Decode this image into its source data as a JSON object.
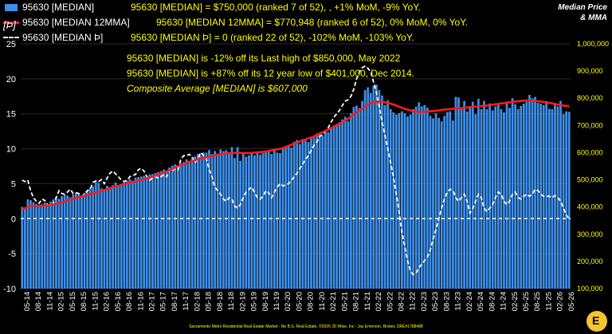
{
  "chart_data": {
    "type": "bar",
    "ylabel_left": "[Þ]",
    "corner_title": [
      "Median Price",
      "& MMA"
    ],
    "left_axis": {
      "ylim": [
        -10,
        25
      ],
      "ticks": [
        -10,
        -5,
        0,
        5,
        10,
        15,
        20,
        25
      ]
    },
    "right_axis": {
      "ylim": [
        100000,
        1000000
      ],
      "ticks": [
        "100,000",
        "200,000",
        "300,000",
        "400,000",
        "500,000",
        "600,000",
        "700,000",
        "800,000",
        "900,000",
        "1,000,000"
      ]
    },
    "x_tick_labels": [
      "05-14",
      "08-14",
      "11-14",
      "02-15",
      "05-15",
      "08-15",
      "11-15",
      "02-16",
      "05-16",
      "08-16",
      "11-16",
      "02-17",
      "05-17",
      "08-17",
      "11-17",
      "02-18",
      "05-18",
      "08-18",
      "11-18",
      "02-19",
      "05-19",
      "08-19",
      "11-19",
      "02-20",
      "05-20",
      "08-20",
      "11-20",
      "02-21",
      "05-21",
      "08-21",
      "11-21",
      "02-22",
      "05-22",
      "08-22",
      "11-22",
      "02-23",
      "05-23",
      "08-23",
      "11-23",
      "02-24",
      "05-24",
      "08-24",
      "11-24",
      "02-25",
      "05-25",
      "08-25",
      "11-25",
      "02-26",
      "05-26"
    ],
    "series": [
      {
        "name": "95630 [MEDIAN]",
        "kind": "bar",
        "axis": "right",
        "color": "#3d8fe8",
        "description": "95630 [MEDIAN] = $750,000 (ranked 7 of 52), , +1% MoM, -9% YoY.",
        "values": [
          400000,
          392000,
          428000,
          425000,
          418000,
          412000,
          405000,
          410000,
          416000,
          402000,
          420000,
          428000,
          436000,
          430000,
          440000,
          445000,
          442000,
          436000,
          446000,
          452000,
          448000,
          442000,
          452000,
          462000,
          470000,
          476000,
          494000,
          488000,
          468000,
          464000,
          478000,
          472000,
          480000,
          490000,
          476000,
          482000,
          491000,
          497000,
          503000,
          497000,
          508000,
          510000,
          512000,
          515000,
          510000,
          520000,
          521000,
          525000,
          528000,
          532000,
          538000,
          531000,
          545000,
          552000,
          557000,
          548000,
          560000,
          565000,
          575000,
          570000,
          579000,
          586000,
          595000,
          589000,
          600000,
          600000,
          610000,
          595000,
          606000,
          596000,
          612000,
          605000,
          609000,
          595000,
          620000,
          580000,
          620000,
          570000,
          600000,
          585000,
          590000,
          596000,
          590000,
          600000,
          592000,
          598000,
          600000,
          605000,
          595000,
          610000,
          600000,
          598000,
          615000,
          622000,
          627000,
          618000,
          640000,
          646000,
          632000,
          650000,
          644000,
          639000,
          652000,
          656000,
          670000,
          665000,
          662000,
          680000,
          675000,
          690000,
          700000,
          706000,
          712000,
          722000,
          732000,
          716000,
          745000,
          768000,
          773000,
          764000,
          790000,
          830000,
          840000,
          820000,
          845000,
          850000,
          830000,
          810000,
          775000,
          792000,
          760000,
          748000,
          740000,
          745000,
          752000,
          745000,
          733000,
          740000,
          760000,
          769000,
          785000,
          770000,
          775000,
          765000,
          735000,
          726000,
          745000,
          728000,
          715000,
          735000,
          749000,
          752000,
          718000,
          805000,
          803000,
          760000,
          790000,
          751000,
          768000,
          787000,
          742000,
          798000,
          760000,
          790000,
          760000,
          781000,
          755000,
          770000,
          780000,
          760000,
          748000,
          786000,
          765000,
          800000,
          778000,
          760000,
          772000,
          780000,
          787000,
          812000,
          800000,
          805000,
          783000,
          780000,
          775000,
          790000,
          761000,
          760000,
          778000,
          770000,
          790000,
          742000,
          752000,
          750000
        ]
      },
      {
        "name": "95630 [MEDIAN 12MMA]",
        "kind": "line",
        "axis": "right",
        "color": "#ff1a1a",
        "description": "95630 [MEDIAN 12MMA] = $770,948 (ranked 6 of 52),  0% MoM, 0% YoY.",
        "values": [
          390000,
          395000,
          400000,
          405000,
          405000,
          405000,
          405000,
          405000,
          406000,
          406000,
          408000,
          410000,
          412000,
          414000,
          417000,
          420000,
          424000,
          428000,
          430000,
          433000,
          436000,
          439000,
          441000,
          444000,
          447000,
          450000,
          453000,
          456000,
          460000,
          462000,
          466000,
          470000,
          473000,
          476000,
          478000,
          481000,
          484000,
          487000,
          490000,
          492000,
          494000,
          497000,
          500000,
          502000,
          505000,
          508000,
          512000,
          515000,
          519000,
          523000,
          527000,
          531000,
          535000,
          540000,
          545000,
          550000,
          554000,
          558000,
          562000,
          566000,
          569000,
          572000,
          575000,
          578000,
          580000,
          583000,
          585000,
          588000,
          590000,
          592000,
          594000,
          596000,
          597000,
          598000,
          598000,
          599000,
          600000,
          599000,
          598000,
          598000,
          598000,
          599000,
          600000,
          601000,
          602000,
          603000,
          604000,
          606000,
          608000,
          610000,
          612000,
          614000,
          617000,
          621000,
          625000,
          629000,
          633000,
          637000,
          641000,
          645000,
          648000,
          652000,
          656000,
          660000,
          665000,
          670000,
          675000,
          680000,
          685000,
          690000,
          695000,
          700000,
          706000,
          712000,
          718000,
          725000,
          732000,
          740000,
          748000,
          755000,
          762000,
          769000,
          776000,
          781000,
          786000,
          788000,
          788000,
          787000,
          785000,
          783000,
          780000,
          777000,
          773000,
          769000,
          765000,
          761000,
          758000,
          755000,
          752000,
          751000,
          750000,
          750000,
          750000,
          751000,
          752000,
          753000,
          754000,
          755000,
          757000,
          758000,
          759000,
          760000,
          761000,
          762000,
          763000,
          764000,
          765000,
          766000,
          767000,
          768000,
          769000,
          770000,
          771000,
          772000,
          773000,
          774000,
          776000,
          778000,
          779000,
          781000,
          782000,
          784000,
          785000,
          787000,
          788000,
          789000,
          790000,
          791000,
          792000,
          792000,
          791000,
          790000,
          789000,
          788000,
          786000,
          785000,
          783000,
          781000,
          779000,
          777000,
          775000,
          773000,
          772000,
          771000
        ]
      },
      {
        "name": "95630 [MEDIAN Þ]",
        "kind": "dashed-line",
        "axis": "left",
        "color": "#ffffff",
        "description": "95630 [MEDIAN Þ] = 0 (ranked 22 of 52), -102% MoM, -103% YoY.",
        "values": [
          5.5,
          5.3,
          5.5,
          4.0,
          3.0,
          2.5,
          2.2,
          2.8,
          2.6,
          2.0,
          1.8,
          2.2,
          3.0,
          4.0,
          3.6,
          3.5,
          3.8,
          4.2,
          3.6,
          3.7,
          3.6,
          3.2,
          3.5,
          4.0,
          4.2,
          5.2,
          5.4,
          5.3,
          5.6,
          5.0,
          5.8,
          6.5,
          6.8,
          6.4,
          6.0,
          5.5,
          5.3,
          5.5,
          6.0,
          6.2,
          6.3,
          7.0,
          7.2,
          6.8,
          6.0,
          5.5,
          5.8,
          6.0,
          5.8,
          6.0,
          6.3,
          6.0,
          7.0,
          6.8,
          7.2,
          7.0,
          8.5,
          9.0,
          9.0,
          9.2,
          8.8,
          8.0,
          8.5,
          9.5,
          9.0,
          8.6,
          7.0,
          6.0,
          4.5,
          4.0,
          3.5,
          2.8,
          2.5,
          3.0,
          2.8,
          1.8,
          1.5,
          2.0,
          3.0,
          3.8,
          4.2,
          4.5,
          3.8,
          3.0,
          2.8,
          3.2,
          4.0,
          3.7,
          3.0,
          3.8,
          4.5,
          5.0,
          4.7,
          4.8,
          5.0,
          5.5,
          6.0,
          6.5,
          7.2,
          7.8,
          8.5,
          9.0,
          9.8,
          10.5,
          11.0,
          11.8,
          12.0,
          12.5,
          13.0,
          13.8,
          14.5,
          15.0,
          15.5,
          16.2,
          16.8,
          17.0,
          17.5,
          18.5,
          20.0,
          21.0,
          21.6,
          21.8,
          21.5,
          21.0,
          19.5,
          18.0,
          16.0,
          13.8,
          12.0,
          10.0,
          8.0,
          6.0,
          3.5,
          1.0,
          -2.0,
          -4.0,
          -6.0,
          -7.5,
          -8.0,
          -7.8,
          -7.0,
          -6.5,
          -6.0,
          -5.5,
          -4.5,
          -3.0,
          -1.5,
          0.0,
          1.5,
          2.8,
          3.8,
          4.2,
          4.0,
          3.0,
          2.5,
          3.0,
          3.5,
          2.5,
          0.8,
          1.5,
          2.5,
          3.5,
          3.0,
          1.5,
          1.0,
          1.5,
          2.0,
          3.0,
          3.8,
          3.5,
          2.5,
          2.0,
          2.5,
          3.5,
          3.8,
          3.0,
          2.8,
          3.2,
          3.5,
          3.2,
          3.5,
          4.2,
          4.0,
          3.5,
          3.2,
          3.2,
          3.2,
          3.0,
          3.3,
          3.0,
          2.5,
          1.5,
          0.5,
          0.0
        ]
      }
    ],
    "annotations": [
      "95630 [MEDIAN] is -12% off its Last high of $850,000, May 2022",
      "95630 [MEDIAN] is +87% off its 12 year low of $401,000, Dec 2014.",
      "Composite Average [MEDIAN] is $607,000"
    ],
    "footer": "Sacramento Metro Residential Real Estate Market - No B.S. Real Estate, ©2026 JD Wise, Inc - Jay Emerson, Broker, DRE#1788488",
    "logo_letter": "E",
    "colors": {
      "background": "#000000",
      "left_axis_text": "#ffffff",
      "right_axis_text": "#ffff00",
      "annotation_text": "#ffff00"
    }
  }
}
